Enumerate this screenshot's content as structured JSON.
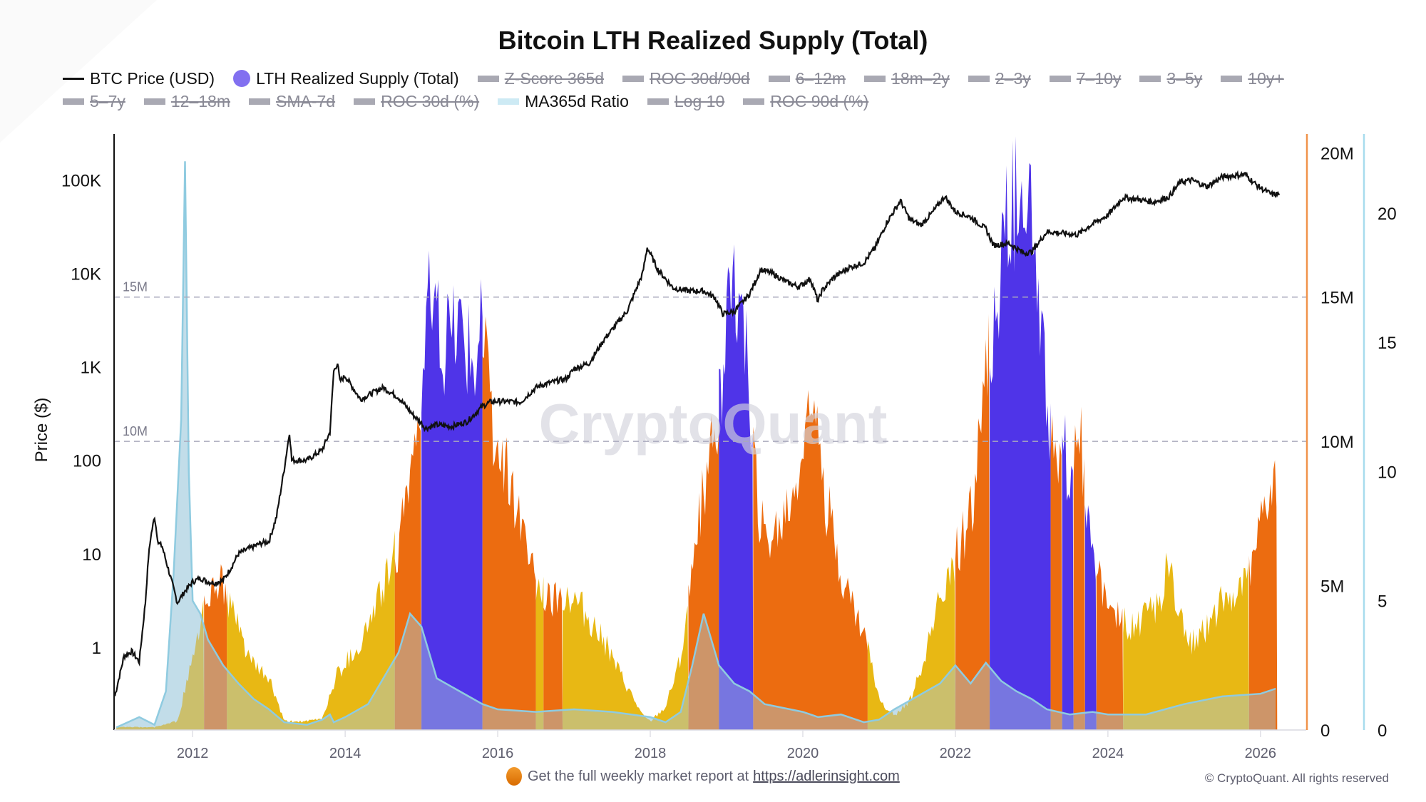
{
  "chart_data": {
    "type": "area",
    "title": "Bitcoin LTH Realized Supply (Total)",
    "watermark": "CryptoQuant",
    "legend": [
      {
        "name": "BTC Price (USD)",
        "enabled": true,
        "style": "line",
        "color": "#111111"
      },
      {
        "name": "LTH Realized Supply (Total)",
        "enabled": true,
        "style": "dot",
        "color": "#8270f0"
      },
      {
        "name": "Z-Score 365d",
        "enabled": false
      },
      {
        "name": "ROC 30d/90d",
        "enabled": false
      },
      {
        "name": "6–12m",
        "enabled": false
      },
      {
        "name": "18m–2y",
        "enabled": false
      },
      {
        "name": "2–3y",
        "enabled": false
      },
      {
        "name": "7–10y",
        "enabled": false
      },
      {
        "name": "3–5y",
        "enabled": false
      },
      {
        "name": "10y+",
        "enabled": false
      },
      {
        "name": "5–7y",
        "enabled": false
      },
      {
        "name": "12–18m",
        "enabled": false
      },
      {
        "name": "SMA-7d",
        "enabled": false
      },
      {
        "name": "ROC 30d (%)",
        "enabled": false
      },
      {
        "name": "MA365d Ratio",
        "enabled": true,
        "style": "band",
        "color": "#a8dcee"
      },
      {
        "name": "Log 10",
        "enabled": false
      },
      {
        "name": "ROC 90d (%)",
        "enabled": false
      }
    ],
    "x_axis": {
      "ticks": [
        "2012",
        "2014",
        "2016",
        "2018",
        "2020",
        "2022",
        "2024",
        "2026"
      ],
      "range": [
        2010.97,
        2026.6
      ]
    },
    "y_axis_left": {
      "label": "Price ($)",
      "scale": "log",
      "ticks": [
        "1",
        "10",
        "100",
        "1K",
        "10K",
        "100K"
      ],
      "range": [
        0.13,
        300000
      ]
    },
    "y_axis_supply": {
      "ticks": [
        "0",
        "5M",
        "10M",
        "15M",
        "20M"
      ],
      "range": [
        0,
        20600000
      ],
      "reference_lines": [
        "10M",
        "15M"
      ]
    },
    "y_axis_ratio": {
      "ticks": [
        "0",
        "5",
        "10",
        "15",
        "20"
      ],
      "range": [
        0,
        23
      ]
    },
    "colors": {
      "regime_low": "#e8b814",
      "regime_mid": "#ec6c10",
      "regime_high": "#4f34e8",
      "ratio_band": "#a8dcee",
      "price": "#111111",
      "supply_axis": "#f0934a",
      "ratio_axis": "#a8dcee"
    },
    "series": {
      "btc_price": {
        "x": [
          2010.98,
          2011.1,
          2011.2,
          2011.3,
          2011.38,
          2011.42,
          2011.45,
          2011.5,
          2011.55,
          2011.6,
          2011.7,
          2011.8,
          2011.9,
          2012.0,
          2012.1,
          2012.2,
          2012.3,
          2012.4,
          2012.5,
          2012.6,
          2012.7,
          2012.9,
          2013.0,
          2013.1,
          2013.2,
          2013.27,
          2013.3,
          2013.35,
          2013.5,
          2013.7,
          2013.8,
          2013.85,
          2013.9,
          2013.93,
          2014.0,
          2014.1,
          2014.2,
          2014.4,
          2014.5,
          2014.7,
          2014.9,
          2015.0,
          2015.05,
          2015.2,
          2015.4,
          2015.6,
          2015.8,
          2015.9,
          2016.0,
          2016.3,
          2016.5,
          2016.6,
          2016.9,
          2017.0,
          2017.2,
          2017.4,
          2017.5,
          2017.7,
          2017.9,
          2017.96,
          2018.1,
          2018.3,
          2018.5,
          2018.7,
          2018.85,
          2018.95,
          2019.1,
          2019.3,
          2019.45,
          2019.6,
          2019.8,
          2019.95,
          2020.1,
          2020.2,
          2020.25,
          2020.4,
          2020.6,
          2020.8,
          2020.95,
          2021.1,
          2021.28,
          2021.4,
          2021.55,
          2021.7,
          2021.86,
          2022.0,
          2022.2,
          2022.4,
          2022.5,
          2022.7,
          2022.9,
          2023.0,
          2023.2,
          2023.4,
          2023.6,
          2023.8,
          2024.0,
          2024.2,
          2024.4,
          2024.6,
          2024.8,
          2024.95,
          2025.1,
          2025.3,
          2025.5,
          2025.8,
          2025.95,
          2026.05,
          2026.15,
          2026.25
        ],
        "values": [
          0.3,
          0.8,
          0.9,
          0.7,
          3,
          9,
          15,
          25,
          13,
          12,
          6,
          3,
          4,
          5,
          5.5,
          5,
          4.9,
          5.2,
          7,
          10,
          11,
          13,
          13.5,
          25,
          80,
          200,
          100,
          100,
          100,
          130,
          200,
          900,
          1100,
          700,
          800,
          600,
          450,
          550,
          600,
          470,
          300,
          250,
          220,
          240,
          230,
          260,
          380,
          420,
          430,
          420,
          600,
          650,
          750,
          950,
          1100,
          2000,
          2500,
          4000,
          10000,
          19000,
          11000,
          7000,
          6500,
          6500,
          5500,
          3700,
          3900,
          6000,
          11000,
          10000,
          8000,
          7200,
          8800,
          5000,
          6500,
          9000,
          11500,
          13000,
          19000,
          35000,
          60000,
          38000,
          33000,
          45000,
          67000,
          46000,
          40000,
          30000,
          20000,
          21000,
          16500,
          17000,
          28000,
          27000,
          26000,
          34000,
          42000,
          65000,
          62000,
          58000,
          66000,
          95000,
          100000,
          85000,
          108000,
          115000,
          88000,
          78000,
          70000,
          71000
        ]
      },
      "lth_realized_supply": {
        "x": [
          2011.0,
          2011.5,
          2011.8,
          2012.0,
          2012.2,
          2012.4,
          2012.6,
          2012.8,
          2013.0,
          2013.2,
          2013.5,
          2013.7,
          2013.9,
          2014.2,
          2014.5,
          2014.7,
          2014.85,
          2015.0,
          2015.1,
          2015.3,
          2015.5,
          2015.7,
          2015.8,
          2015.95,
          2016.1,
          2016.3,
          2016.5,
          2016.7,
          2016.9,
          2017.1,
          2017.3,
          2017.5,
          2017.7,
          2017.9,
          2018.0,
          2018.2,
          2018.4,
          2018.55,
          2018.7,
          2018.85,
          2019.0,
          2019.1,
          2019.25,
          2019.4,
          2019.5,
          2019.7,
          2019.9,
          2020.0,
          2020.2,
          2020.3,
          2020.5,
          2020.7,
          2020.85,
          2021.0,
          2021.2,
          2021.4,
          2021.6,
          2021.8,
          2022.0,
          2022.2,
          2022.4,
          2022.6,
          2022.8,
          2022.9,
          2023.0,
          2023.15,
          2023.3,
          2023.4,
          2023.5,
          2023.6,
          2023.7,
          2023.8,
          2023.95,
          2024.1,
          2024.3,
          2024.5,
          2024.7,
          2024.8,
          2024.9,
          2025.1,
          2025.3,
          2025.5,
          2025.7,
          2025.9,
          2026.0,
          2026.1,
          2026.2
        ],
        "values": [
          0.1,
          0.1,
          0.3,
          2.5,
          5.0,
          5.0,
          3.5,
          2.2,
          1.8,
          0.3,
          0.3,
          0.4,
          2.0,
          3.0,
          5.0,
          6.5,
          9.0,
          11.5,
          14.5,
          13.0,
          14.0,
          12.5,
          14.0,
          10.0,
          9.0,
          7.5,
          5.0,
          4.5,
          4.8,
          4.3,
          3.5,
          2.5,
          1.5,
          0.5,
          0.3,
          0.8,
          2.5,
          5.5,
          8.5,
          10.0,
          14.0,
          15.5,
          13.0,
          8.0,
          6.5,
          7.0,
          8.5,
          10.0,
          12.0,
          8.0,
          5.5,
          4.0,
          3.0,
          1.0,
          0.5,
          1.0,
          2.5,
          4.5,
          6.0,
          7.5,
          12.0,
          16.0,
          19.0,
          19.5,
          18.0,
          13.0,
          9.0,
          11.0,
          8.0,
          11.0,
          8.5,
          6.5,
          4.5,
          4.0,
          3.5,
          4.0,
          4.5,
          6.0,
          4.0,
          3.0,
          3.5,
          4.5,
          4.8,
          5.5,
          7.0,
          8.0,
          8.5
        ],
        "regimes": [
          {
            "from": 2011.0,
            "to": 2012.15,
            "level": "low"
          },
          {
            "from": 2012.15,
            "to": 2012.45,
            "level": "mid"
          },
          {
            "from": 2012.45,
            "to": 2014.65,
            "level": "low"
          },
          {
            "from": 2014.65,
            "to": 2015.0,
            "level": "mid"
          },
          {
            "from": 2015.0,
            "to": 2015.8,
            "level": "high"
          },
          {
            "from": 2015.8,
            "to": 2016.5,
            "level": "mid"
          },
          {
            "from": 2016.5,
            "to": 2016.6,
            "level": "low"
          },
          {
            "from": 2016.6,
            "to": 2016.85,
            "level": "mid"
          },
          {
            "from": 2016.85,
            "to": 2018.5,
            "level": "low"
          },
          {
            "from": 2018.5,
            "to": 2018.9,
            "level": "mid"
          },
          {
            "from": 2018.9,
            "to": 2019.35,
            "level": "high"
          },
          {
            "from": 2019.35,
            "to": 2020.85,
            "level": "mid"
          },
          {
            "from": 2020.85,
            "to": 2022.0,
            "level": "low"
          },
          {
            "from": 2022.0,
            "to": 2022.45,
            "level": "mid"
          },
          {
            "from": 2022.45,
            "to": 2023.25,
            "level": "high"
          },
          {
            "from": 2023.25,
            "to": 2023.4,
            "level": "mid"
          },
          {
            "from": 2023.4,
            "to": 2023.55,
            "level": "high"
          },
          {
            "from": 2023.55,
            "to": 2023.7,
            "level": "mid"
          },
          {
            "from": 2023.7,
            "to": 2023.85,
            "level": "high"
          },
          {
            "from": 2023.85,
            "to": 2024.2,
            "level": "mid"
          },
          {
            "from": 2024.2,
            "to": 2025.85,
            "level": "low"
          },
          {
            "from": 2025.85,
            "to": 2026.22,
            "level": "mid"
          }
        ],
        "unit": "millions BTC"
      },
      "ma365d_ratio": {
        "x": [
          2011.0,
          2011.3,
          2011.5,
          2011.65,
          2011.75,
          2011.85,
          2011.9,
          2011.95,
          2012.0,
          2012.1,
          2012.2,
          2012.4,
          2012.6,
          2012.8,
          2013.0,
          2013.2,
          2013.5,
          2013.7,
          2013.8,
          2013.85,
          2014.0,
          2014.3,
          2014.5,
          2014.7,
          2014.85,
          2015.0,
          2015.2,
          2015.5,
          2015.8,
          2016.0,
          2016.5,
          2017.0,
          2017.5,
          2018.0,
          2018.2,
          2018.4,
          2018.55,
          2018.7,
          2018.9,
          2019.1,
          2019.3,
          2019.5,
          2020.0,
          2020.2,
          2020.5,
          2020.8,
          2021.0,
          2021.2,
          2021.5,
          2021.8,
          2022.0,
          2022.2,
          2022.4,
          2022.6,
          2022.8,
          2023.0,
          2023.2,
          2023.5,
          2023.8,
          2024.0,
          2024.5,
          2025.0,
          2025.5,
          2026.0,
          2026.2
        ],
        "values": [
          0.1,
          0.5,
          0.2,
          1.5,
          6.0,
          12.0,
          22.0,
          10.0,
          5.0,
          4.5,
          3.5,
          2.5,
          1.8,
          1.2,
          0.8,
          0.3,
          0.2,
          0.4,
          0.6,
          0.3,
          0.5,
          1.0,
          2.0,
          3.0,
          4.5,
          4.0,
          2.0,
          1.5,
          1.0,
          0.8,
          0.7,
          0.8,
          0.7,
          0.5,
          0.3,
          0.7,
          2.5,
          4.5,
          2.5,
          1.8,
          1.5,
          1.0,
          0.7,
          0.5,
          0.6,
          0.3,
          0.4,
          0.8,
          1.3,
          1.8,
          2.5,
          1.8,
          2.6,
          1.9,
          1.5,
          1.2,
          0.8,
          0.6,
          0.7,
          0.6,
          0.6,
          1.0,
          1.3,
          1.4,
          1.6
        ]
      }
    }
  },
  "footer": {
    "promo_text": "Get the full weekly market report at",
    "promo_link": "https://adlerinsight.com",
    "copyright": "© CryptoQuant. All rights reserved"
  }
}
